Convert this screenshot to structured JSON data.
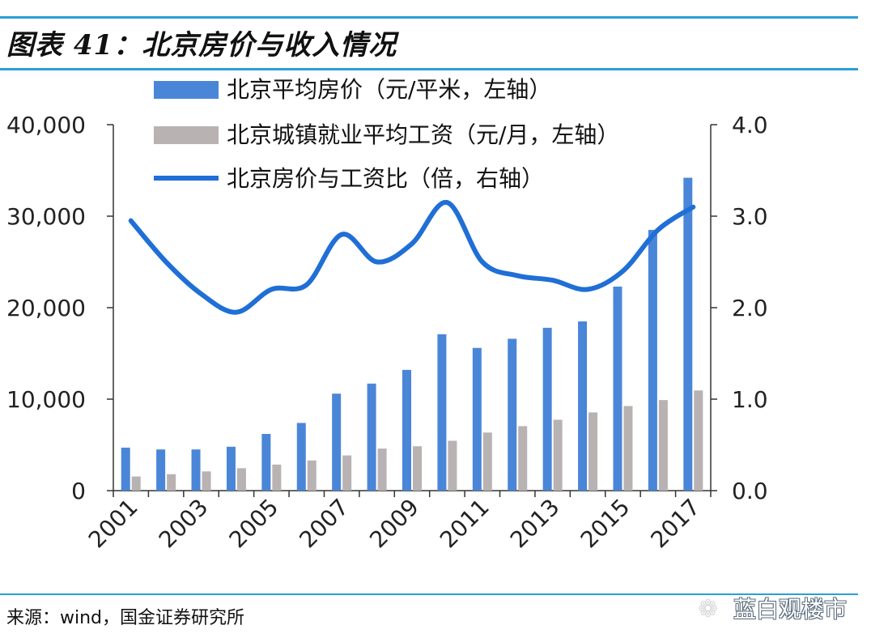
{
  "title": "图表 41：北京房价与收入情况",
  "source": "来源：wind，国金证券研究所",
  "watermark": "蓝白观楼市",
  "watermark_icon": "wechat-icon",
  "colors": {
    "price": "#4a86d8",
    "wage": "#b8b2b2",
    "ratio": "#1f6fd6",
    "accent": "#2a9fd6",
    "axis": "#333333"
  },
  "chart_data": {
    "type": "bar",
    "x": [
      "2001",
      "2002",
      "2003",
      "2004",
      "2005",
      "2006",
      "2007",
      "2008",
      "2009",
      "2010",
      "2011",
      "2012",
      "2013",
      "2014",
      "2015",
      "2016",
      "2017"
    ],
    "x_tick_labels": [
      "2001",
      "2003",
      "2005",
      "2007",
      "2009",
      "2011",
      "2013",
      "2015",
      "2017"
    ],
    "y_left_ticks": [
      "0",
      "10,000",
      "20,000",
      "30,000",
      "40,000"
    ],
    "y_right_ticks": [
      "0.0",
      "1.0",
      "2.0",
      "3.0",
      "4.0"
    ],
    "y_left_lim": [
      0,
      40000
    ],
    "y_right_lim": [
      0,
      4
    ],
    "grid": false,
    "legend_position": "top",
    "series": [
      {
        "name": "北京平均房价（元/平米，左轴）",
        "kind": "bar",
        "axis": "left",
        "values": [
          4700,
          4500,
          4500,
          4800,
          6200,
          7400,
          10600,
          11700,
          13200,
          17100,
          15600,
          16600,
          17800,
          18500,
          22300,
          28500,
          34200
        ]
      },
      {
        "name": "北京城镇就业平均工资（元/月，左轴）",
        "kind": "bar",
        "axis": "left",
        "values": [
          1550,
          1800,
          2100,
          2450,
          2850,
          3300,
          3850,
          4600,
          4850,
          5450,
          6350,
          7050,
          7750,
          8550,
          9250,
          9900,
          10950
        ]
      },
      {
        "name": "北京房价与工资比（倍，右轴）",
        "kind": "line",
        "axis": "right",
        "values": [
          2.95,
          2.5,
          2.15,
          1.95,
          2.2,
          2.25,
          2.8,
          2.5,
          2.7,
          3.15,
          2.5,
          2.35,
          2.3,
          2.2,
          2.4,
          2.85,
          3.1
        ]
      }
    ]
  }
}
